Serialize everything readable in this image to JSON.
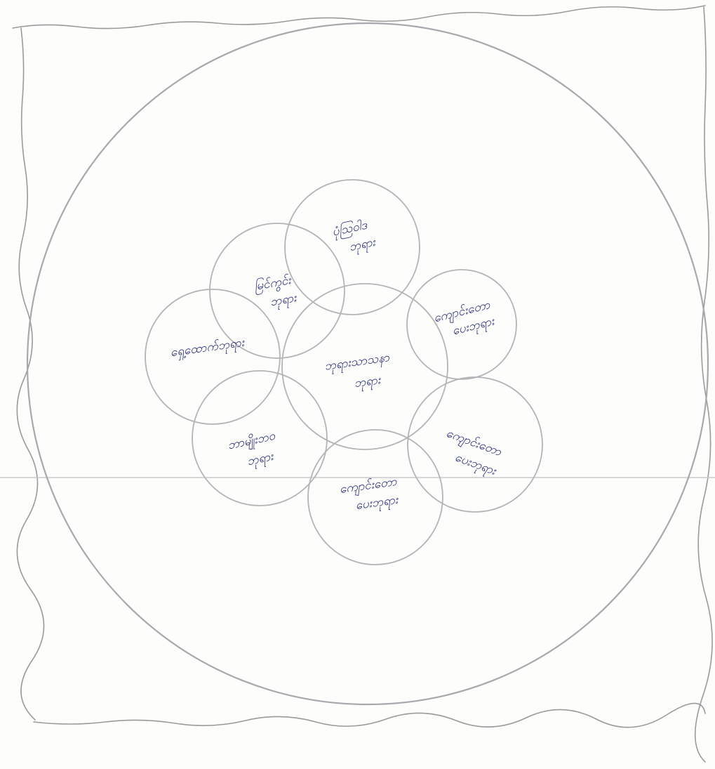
{
  "diagram": {
    "type": "hand-drawn venn-style circle diagram",
    "colors": {
      "pencil": "#a8a8ad",
      "ink": "#2a2f7a",
      "paper": "#fdfdfc"
    },
    "center_circle": {
      "label_lines": [
        "ဘုရားသာသနာ",
        "ဘုရား"
      ]
    },
    "petal_circles": [
      {
        "id": "top",
        "label_lines": [
          "ပုံသြဝါဒ",
          "ဘုရား"
        ]
      },
      {
        "id": "upper-left",
        "label_lines": [
          "မြင်ကွင်း",
          "ဘုရား"
        ]
      },
      {
        "id": "left",
        "label_lines": [
          "ရှေ့ထောက်ဘုရား"
        ]
      },
      {
        "id": "lower-left",
        "label_lines": [
          "ဘာမျိုးဘ၀",
          "ဘုရား"
        ]
      },
      {
        "id": "bottom",
        "label_lines": [
          "ကျောင်းတော",
          "ပေးဘုရား"
        ]
      },
      {
        "id": "lower-right",
        "label_lines": [
          "ကျောင်းတော",
          "ပေးဘုရား"
        ]
      },
      {
        "id": "upper-right",
        "label_lines": [
          "ကျောင်းတော",
          "ပေးဘုရား"
        ]
      }
    ]
  }
}
